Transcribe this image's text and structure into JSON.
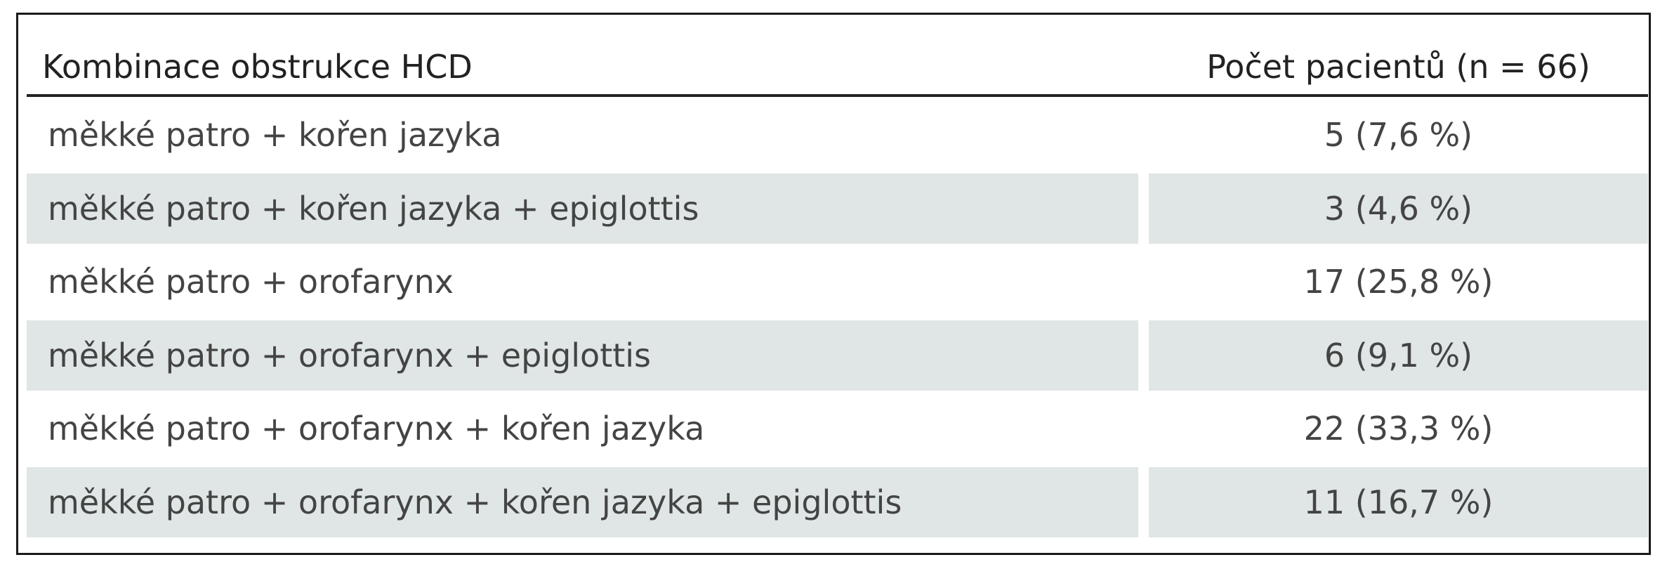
{
  "table": {
    "header": [
      "Kombinace obstrukce HCD",
      "Počet pacientů (n = 66)"
    ],
    "rows": [
      [
        "měkké patro + kořen jazyka",
        "5 (7,6 %)"
      ],
      [
        "měkké patro + kořen jazyka + epiglottis",
        "3 (4,6 %)"
      ],
      [
        "měkké patro + orofarynx",
        "17 (25,8 %)"
      ],
      [
        "měkké patro + orofarynx + epiglottis",
        "6 (9,1 %)"
      ],
      [
        "měkké patro + orofarynx + kořen jazyka",
        "22 (33,3 %)"
      ],
      [
        "měkké patro + orofarynx + kořen jazyka + epiglottis",
        "11 (16,7 %)"
      ]
    ]
  }
}
